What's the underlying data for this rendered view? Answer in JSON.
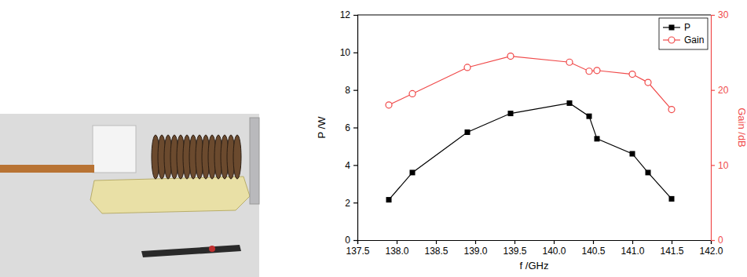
{
  "chart_data": {
    "type": "line",
    "xlabel": "f /GHz",
    "ylabel": "P /W",
    "y2label": "Gain /dB",
    "x": [
      137.9,
      138.2,
      138.9,
      139.45,
      140.2,
      140.45,
      140.55,
      141.0,
      141.2,
      141.5
    ],
    "series": [
      {
        "name": "P",
        "color": "#000000",
        "marker": "square",
        "line_style": "solid",
        "values": [
          2.15,
          3.6,
          5.75,
          6.75,
          7.3,
          6.6,
          5.4,
          4.6,
          3.6,
          2.2
        ]
      },
      {
        "name": "Gain",
        "color": "#f04a4a",
        "marker": "open_circle",
        "line_style": "solid",
        "axis": "y2",
        "values": [
          18.0,
          19.5,
          23.0,
          24.5,
          23.7,
          22.5,
          22.6,
          22.1,
          21.0,
          17.4
        ]
      }
    ],
    "xlim": [
      137.5,
      142.0
    ],
    "xticks": [
      137.5,
      {
        "value": 138,
        "label": "138.0"
      },
      138.5,
      {
        "value": 139,
        "label": "139.0"
      },
      139.5,
      {
        "value": 140,
        "label": "140.0"
      },
      140.5,
      {
        "value": 141,
        "label": "141.0"
      },
      141.5,
      {
        "value": 142,
        "label": "142.0"
      }
    ],
    "ylim": [
      0,
      12
    ],
    "yticks": [
      0,
      2,
      4,
      6,
      8,
      10,
      12
    ],
    "y2lim": [
      0,
      30
    ],
    "y2ticks": [
      0,
      10,
      20,
      30
    ],
    "grid": false,
    "legend": "upper right"
  }
}
